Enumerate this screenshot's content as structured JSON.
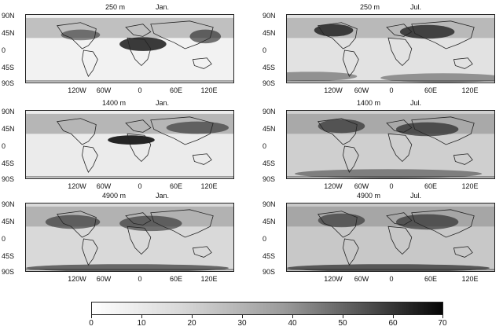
{
  "colors": {
    "scale_low": "#ffffff",
    "scale_high": "#050505",
    "coastline": "#222222"
  },
  "y_tick_labels": [
    "90N",
    "45N",
    "0",
    "45S",
    "90S"
  ],
  "x_tick_labels": [
    "120W",
    "60W",
    "0",
    "60E",
    "120E"
  ],
  "panels": [
    {
      "altitude": "250 m",
      "month": "Jan."
    },
    {
      "altitude": "250 m",
      "month": "Jul."
    },
    {
      "altitude": "1400 m",
      "month": "Jan."
    },
    {
      "altitude": "1400 m",
      "month": "Jul."
    },
    {
      "altitude": "4900 m",
      "month": "Jan."
    },
    {
      "altitude": "4900 m",
      "month": "Jul."
    }
  ],
  "colorbar": {
    "labels": [
      "0",
      "10",
      "20",
      "30",
      "40",
      "50",
      "60",
      "70"
    ],
    "range": [
      0,
      70
    ],
    "palette": "white-to-black grayscale"
  }
}
